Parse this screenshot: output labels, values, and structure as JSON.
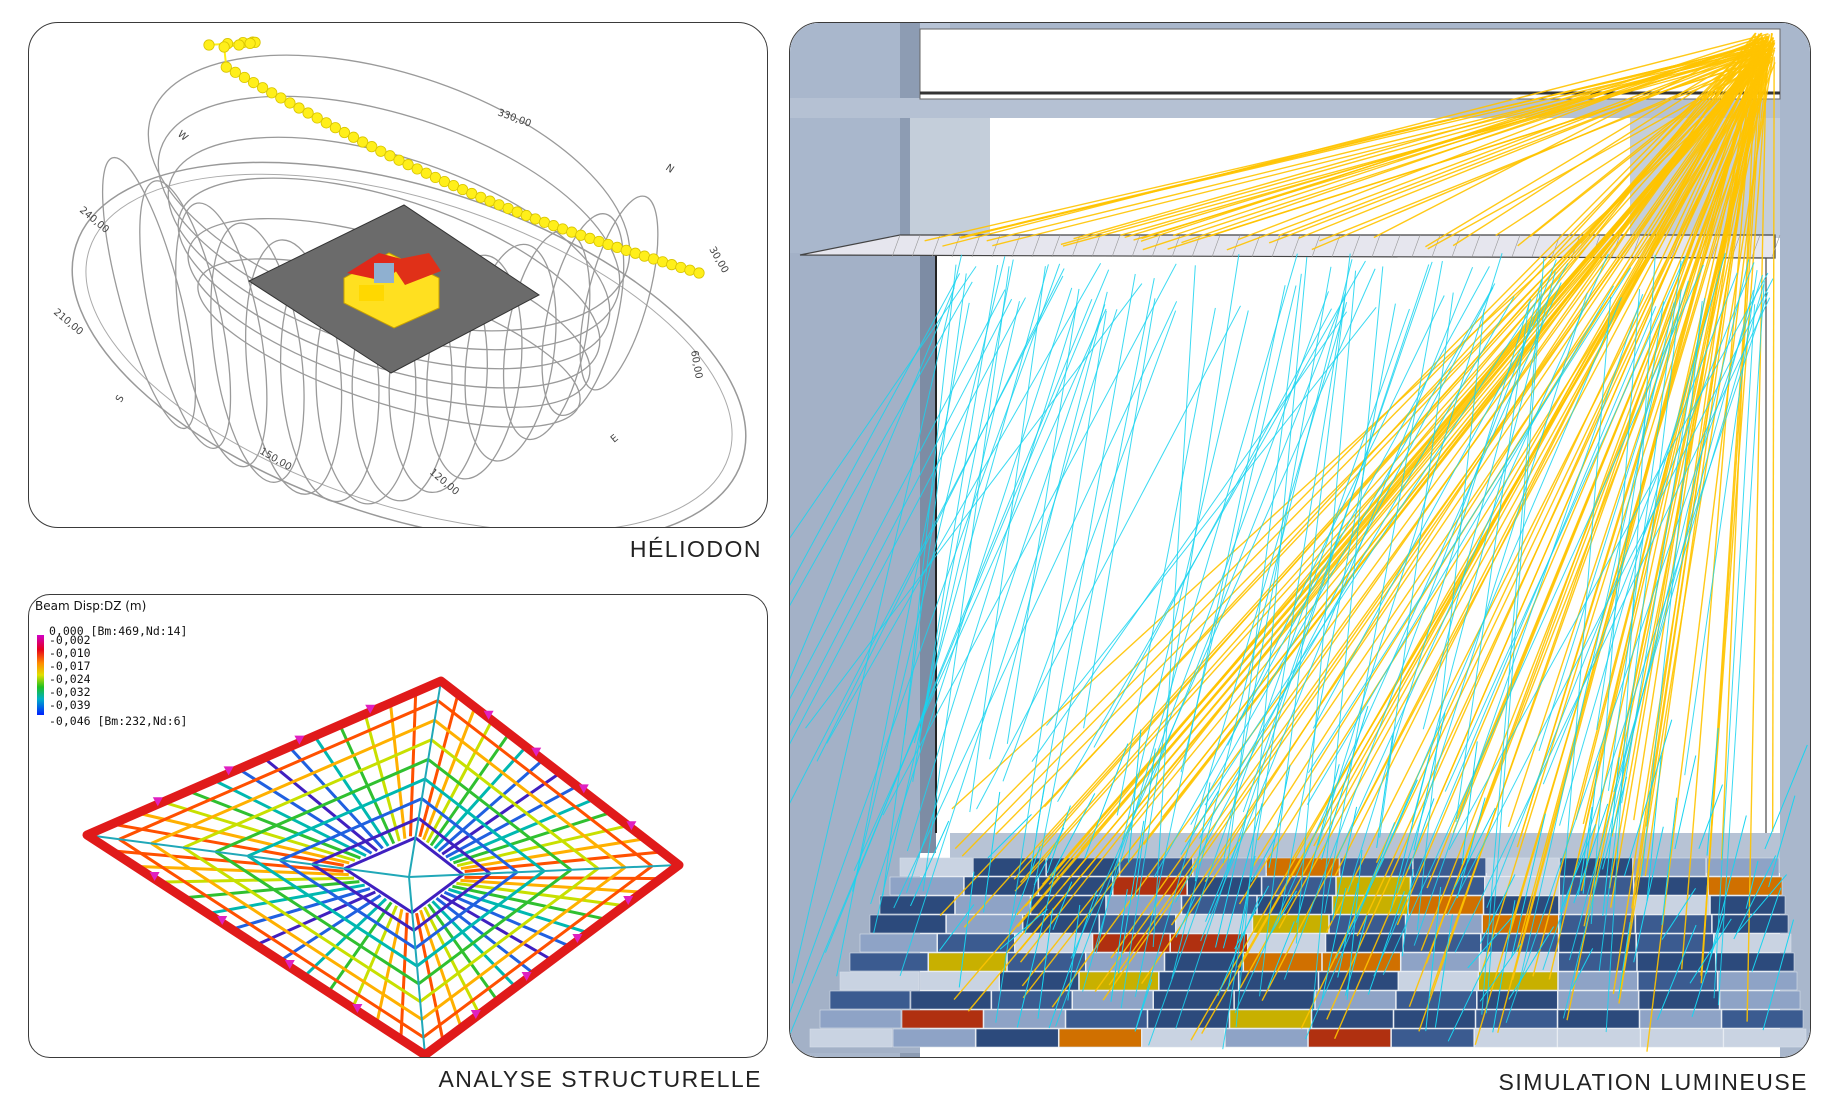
{
  "panels": {
    "heliodon": {
      "caption": "HÉLIODON",
      "dial_labels": [
        "330,00",
        "N",
        "30,00",
        "60,00",
        "E",
        "120,00",
        "150,00",
        "S",
        "210,00",
        "240,00",
        "W"
      ]
    },
    "structure": {
      "caption": "ANALYSE  STRUCTURELLE",
      "legend": {
        "title": "Beam Disp:DZ  (m)",
        "ticks": [
          "0,000 [Bm:469,Nd:14]",
          "-0,002",
          "-0,010",
          "-0,017",
          "-0,024",
          "-0,032",
          "-0,039",
          "-0,046 [Bm:232,Nd:6]"
        ]
      }
    },
    "light": {
      "caption": "SIMULATION   LUMINEUSE"
    }
  },
  "colors": {
    "sun_path": "#ffef1a",
    "ray_orange": "#ffc400",
    "ray_cyan": "#19d4f0",
    "frame_red": "#e01a1a",
    "wall_blue": "#a9b7cc"
  }
}
